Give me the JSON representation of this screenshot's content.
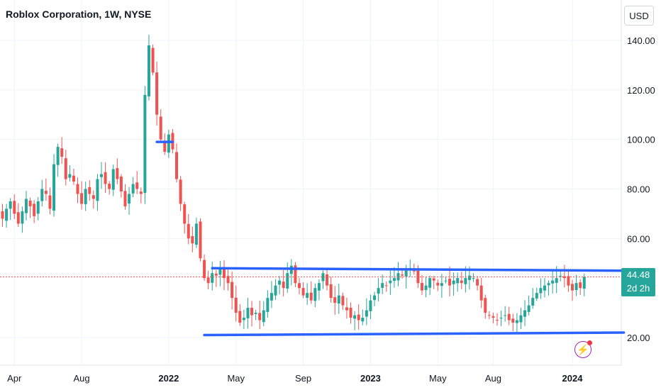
{
  "header": {
    "title": "Roblox Corporation, 1W, NYSE"
  },
  "currency_button": {
    "label": "USD"
  },
  "last_price": {
    "value": "44.48",
    "countdown": "2d 2h"
  },
  "alert_icon": "lightning-icon",
  "colors": {
    "up": "#26a69a",
    "down": "#ef5350",
    "trendline": "#2962ff",
    "last_price_line": "#ef5350",
    "grid": "#f0f3fa"
  },
  "chart_data": {
    "type": "candlestick",
    "title": "Roblox Corporation, 1W, NYSE",
    "ylim": [
      10,
      152
    ],
    "y_ticks": [
      "140.00",
      "120.00",
      "100.00",
      "80.00",
      "60.00",
      "20.00"
    ],
    "y_tick_values": [
      140,
      120,
      100,
      80,
      60,
      20
    ],
    "x_ticks": [
      {
        "label": "Apr",
        "bold": false,
        "index": 3
      },
      {
        "label": "Aug",
        "bold": false,
        "index": 20
      },
      {
        "label": "2022",
        "bold": true,
        "index": 42
      },
      {
        "label": "May",
        "bold": false,
        "index": 59
      },
      {
        "label": "Sep",
        "bold": false,
        "index": 76
      },
      {
        "label": "2023",
        "bold": true,
        "index": 93
      },
      {
        "label": "May",
        "bold": false,
        "index": 110
      },
      {
        "label": "Aug",
        "bold": false,
        "index": 124
      },
      {
        "label": "2024",
        "bold": true,
        "index": 144
      }
    ],
    "closes": [
      68,
      72,
      75,
      70,
      66,
      71,
      76,
      73,
      69,
      75,
      80,
      78,
      72,
      90,
      97,
      93,
      84,
      86,
      83,
      78,
      74,
      80,
      78,
      76,
      84,
      86,
      82,
      80,
      88,
      84,
      79,
      73,
      78,
      82,
      80,
      78,
      118,
      138,
      127,
      110,
      100,
      95,
      102,
      96,
      84,
      74,
      66,
      60,
      58,
      66,
      52,
      44,
      42,
      46,
      45,
      48,
      44,
      42,
      36,
      30,
      26,
      28,
      32,
      29,
      30,
      27,
      31,
      36,
      38,
      41,
      43,
      40,
      46,
      49,
      42,
      40,
      37,
      38,
      35,
      40,
      42,
      46,
      41,
      36,
      34,
      37,
      33,
      31,
      28,
      29,
      27,
      28,
      31,
      35,
      37,
      40,
      42,
      41,
      43,
      44,
      46,
      45,
      47,
      48,
      47,
      42,
      39,
      41,
      44,
      43,
      41,
      42,
      43,
      41,
      43,
      44,
      42,
      44,
      45,
      44,
      41,
      35,
      30,
      29,
      28,
      27,
      28,
      29,
      27,
      26,
      27,
      29,
      31,
      33,
      36,
      38,
      40,
      41,
      42,
      43,
      44,
      45,
      44,
      41,
      39,
      42,
      40,
      44.48
    ],
    "trendlines": [
      {
        "name": "resistance",
        "x": [
          53,
          157
        ],
        "y": [
          48,
          47
        ]
      },
      {
        "name": "support",
        "x": [
          51,
          157
        ],
        "y": [
          21,
          22
        ]
      },
      {
        "name": "marker",
        "x": [
          39,
          43
        ],
        "y": [
          99,
          99
        ]
      }
    ],
    "last_price": 44.48
  }
}
